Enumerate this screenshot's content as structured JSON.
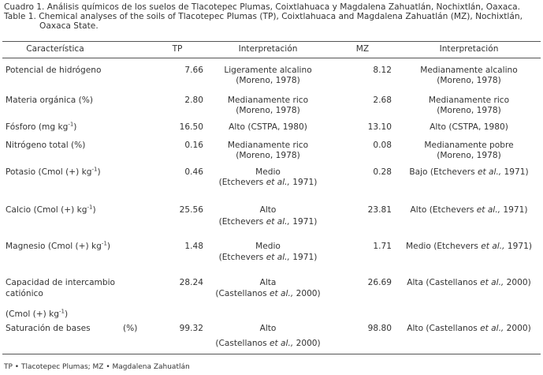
{
  "caption": {
    "es": "Cuadro 1. Análisis químicos de los suelos de Tlacotepec Plumas, Coixtlahuaca y Magdalena Zahuatlán, Nochixtlán, Oaxaca.",
    "en_line1": "Table 1. Chemical analyses of the soils of Tlacotepec Plumas (TP), Coixtlahuaca and Magdalena Zahuatlán (MZ), Nochixtlán,",
    "en_line2": "Oaxaca State."
  },
  "header": {
    "caracteristica": "Característica",
    "tp": "TP",
    "interp1": "Interpretación",
    "mz": "MZ",
    "interp2": "Interpretación"
  },
  "rows": [
    {
      "name": "Potencial de hidrógeno",
      "tp": "7.66",
      "ti1": "Ligeramente alcalino",
      "ti2": "(Moreno, 1978)",
      "mz": "8.12",
      "mi1": "Medianamente alcalino",
      "mi2": "(Moreno, 1978)"
    },
    {
      "name": "Materia orgánica (%)",
      "tp": "2.80",
      "ti1": "Medianamente rico",
      "ti2": "(Moreno, 1978)",
      "mz": "2.68",
      "mi1": "Medianamente rico",
      "mi2": "(Moreno, 1978)"
    },
    {
      "name_main": "Fósforo  (mg kg",
      "name_sup": "-1",
      "name_tail": ")",
      "tp": "16.50",
      "ti1": "Alto (CSTPA, 1980)",
      "mz": "13.10",
      "mi1": "Alto (CSTPA, 1980)"
    },
    {
      "name": "Nitrógeno total (%)",
      "tp": "0.16",
      "ti1": "Medianamente rico",
      "ti2": "(Moreno, 1978)",
      "mz": "0.08",
      "mi1": "Medianamente pobre",
      "mi2": "(Moreno, 1978)"
    },
    {
      "name_main": "Potasio  (Cmol (+) kg",
      "name_sup": "-1",
      "name_tail": ")",
      "tp": "0.46",
      "ti1": "Medio",
      "ti2a": "(Etchevers ",
      "ti2b": "et al.,",
      "ti2c": " 1971)",
      "mz": "0.28",
      "mia": "Bajo (Etchevers ",
      "mib": "et al.,",
      "mic": " 1971)"
    },
    {
      "name_main": "Calcio  (Cmol (+) kg",
      "name_sup": "-1",
      "name_tail": ")",
      "tp": "25.56",
      "ti1": "Alto",
      "ti2a": "(Etchevers ",
      "ti2b": "et al.,",
      "ti2c": " 1971)",
      "mz": "23.81",
      "mia": "Alto (Etchevers ",
      "mib": "et al.,",
      "mic": " 1971)"
    },
    {
      "name_main": "Magnesio (Cmol (+) kg",
      "name_sup": "-1",
      "name_tail": ")",
      "tp": "1.48",
      "ti1": "Medio",
      "ti2a": "(Etchevers ",
      "ti2b": "et al.,",
      "ti2c": " 1971)",
      "mz": "1.71",
      "mia": "Medio (Etchevers ",
      "mib": "et al.,",
      "mic": " 1971)"
    },
    {
      "name": "Capacidad de intercambio",
      "name2": "catiónico",
      "tp": "28.24",
      "ti1": "Alta",
      "ti2a": "(Castellanos ",
      "ti2b": "et al.,",
      "ti2c": " 2000)",
      "mz": "26.69",
      "mia": "Alta (Castellanos ",
      "mib": "et al.,",
      "mic": " 2000)"
    },
    {
      "unit_main": " (Cmol (+) kg",
      "unit_sup": "-1",
      "unit_tail": ")",
      "name": "Saturación de bases",
      "name_pct": "(%)",
      "tp": "99.32",
      "ti1": "Alto",
      "ti2a": "(Castellanos ",
      "ti2b": "et al.,",
      "ti2c": " 2000)",
      "mz": "98.80",
      "mia": "Alto (Castellanos ",
      "mib": "et al.,",
      "mic": " 2000)"
    }
  ],
  "footnote": "TP • Tlacotepec Plumas; MZ • Magdalena Zahuatlán"
}
